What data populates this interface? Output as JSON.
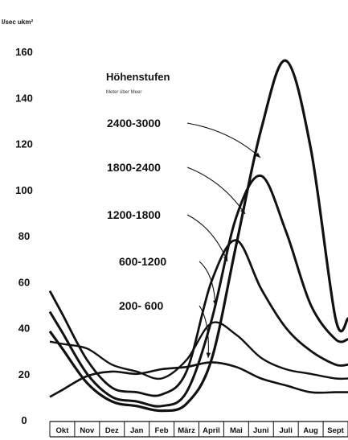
{
  "chart_data": {
    "type": "line",
    "ylabel": "l/sec ukm²",
    "title": "Höhenstufen",
    "subtitle": "Meter über Meer",
    "ylim": [
      0,
      170
    ],
    "yticks": [
      0,
      20,
      40,
      60,
      80,
      100,
      120,
      140,
      160
    ],
    "categories": [
      "Okt",
      "Nov",
      "Dez",
      "Jan",
      "Feb",
      "März",
      "April",
      "Mai",
      "Juni",
      "Juli",
      "Aug",
      "Sept"
    ],
    "grid": false,
    "legend": "inline labels with arrows, left-center",
    "series": [
      {
        "name": "2400-3000",
        "values": [
          31,
          16,
          8,
          6,
          4,
          7,
          26,
          76,
          126,
          156,
          118,
          44
        ]
      },
      {
        "name": "1800-2400",
        "values": [
          38,
          20,
          10,
          8,
          6,
          12,
          43,
          88,
          106,
          82,
          50,
          35
        ]
      },
      {
        "name": "1200-1800",
        "values": [
          46,
          26,
          14,
          12,
          11,
          21,
          60,
          78,
          57,
          40,
          30,
          24
        ]
      },
      {
        "name": "600-1200",
        "values": [
          33,
          31,
          24,
          21,
          18,
          26,
          42,
          37,
          27,
          22,
          20,
          18
        ]
      },
      {
        "name": "200- 600",
        "values": [
          13,
          19,
          21,
          20,
          22,
          23,
          25,
          23,
          18,
          15,
          12,
          12
        ]
      }
    ]
  }
}
